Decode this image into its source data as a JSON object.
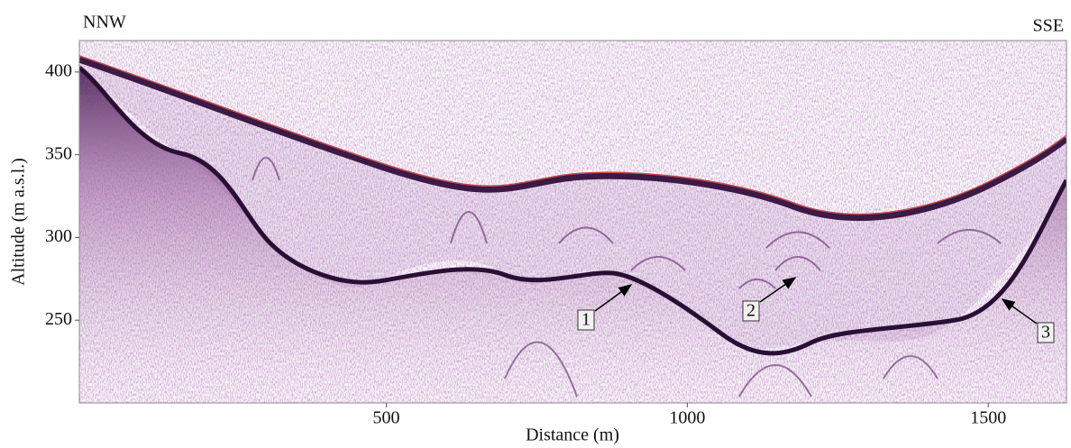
{
  "chart_data": {
    "type": "radargram",
    "xlabel": "Distance (m)",
    "ylabel": "Altitude (m a.s.l.)",
    "left_label": "NNW",
    "right_label": "SSE",
    "xlim": [
      -10,
      1630
    ],
    "xticks": [
      500,
      1000,
      1500
    ],
    "ylim": [
      200,
      419
    ],
    "yticks": [
      250,
      300,
      350,
      400
    ],
    "annotations": [
      "1",
      "2",
      "3"
    ]
  }
}
